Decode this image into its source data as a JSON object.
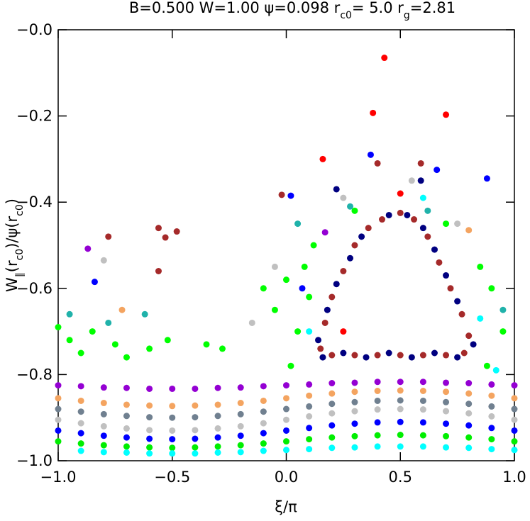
{
  "chart_data": {
    "type": "scatter",
    "title": [
      "B=0.500  W=1.00  ψ=0.098  r",
      "c0",
      "= 5.0  r",
      "g",
      "=2.81"
    ],
    "x_label": [
      "ξ/π"
    ],
    "y_label": [
      "W",
      "∥",
      "(r",
      "c0",
      ")/ψ(r",
      "c0",
      ")"
    ],
    "xlim": [
      -1,
      1
    ],
    "ylim": [
      -1,
      0
    ],
    "xticks": [
      {
        "value": -1,
        "label": "−1.0"
      },
      {
        "value": -0.5,
        "label": "−0.5"
      },
      {
        "value": 0,
        "label": "0.0"
      },
      {
        "value": 0.5,
        "label": "0.5"
      },
      {
        "value": 1,
        "label": "1.0"
      }
    ],
    "yticks": [
      {
        "value": -1,
        "label": "−1.0"
      },
      {
        "value": -0.8,
        "label": "−0.8"
      },
      {
        "value": -0.6,
        "label": "−0.6"
      },
      {
        "value": -0.4,
        "label": "−0.4"
      },
      {
        "value": -0.2,
        "label": "−0.2"
      },
      {
        "value": 0,
        "label": "−0.0"
      }
    ],
    "series": [
      {
        "color": "#9400d3",
        "x": [
          -1,
          -0.9,
          -0.8,
          -0.7,
          -0.6,
          -0.5,
          -0.4,
          -0.3,
          -0.2,
          -0.1,
          0,
          0.1,
          0.2,
          0.3,
          0.4,
          0.5,
          0.6,
          0.7,
          0.8,
          0.9,
          1
        ],
        "values": [
          -0.825,
          -0.827,
          -0.83,
          -0.831,
          -0.833,
          -0.833,
          -0.833,
          -0.831,
          -0.83,
          -0.827,
          -0.825,
          -0.823,
          -0.82,
          -0.819,
          -0.817,
          -0.817,
          -0.817,
          -0.819,
          -0.82,
          -0.823,
          -0.825
        ]
      },
      {
        "color": "#f4a460",
        "x": [
          -1,
          -0.9,
          -0.8,
          -0.7,
          -0.6,
          -0.5,
          -0.4,
          -0.3,
          -0.2,
          -0.1,
          0,
          0.1,
          0.2,
          0.3,
          0.4,
          0.5,
          0.6,
          0.7,
          0.8,
          0.9,
          1
        ],
        "values": [
          -0.855,
          -0.861,
          -0.866,
          -0.87,
          -0.872,
          -0.873,
          -0.872,
          -0.87,
          -0.866,
          -0.861,
          -0.855,
          -0.849,
          -0.844,
          -0.84,
          -0.838,
          -0.837,
          -0.838,
          -0.84,
          -0.844,
          -0.849,
          -0.855
        ]
      },
      {
        "color": "#708090",
        "x": [
          -1,
          -0.9,
          -0.8,
          -0.7,
          -0.6,
          -0.5,
          -0.4,
          -0.3,
          -0.2,
          -0.1,
          0,
          0.1,
          0.2,
          0.3,
          0.4,
          0.5,
          0.6,
          0.7,
          0.8,
          0.9,
          1
        ],
        "values": [
          -0.88,
          -0.886,
          -0.892,
          -0.896,
          -0.899,
          -0.9,
          -0.899,
          -0.896,
          -0.892,
          -0.886,
          -0.88,
          -0.874,
          -0.868,
          -0.864,
          -0.861,
          -0.86,
          -0.861,
          -0.864,
          -0.868,
          -0.874,
          -0.88
        ]
      },
      {
        "color": "#c0c0c0",
        "x": [
          -1,
          -0.9,
          -0.8,
          -0.7,
          -0.6,
          -0.5,
          -0.4,
          -0.3,
          -0.2,
          -0.1,
          0,
          0.1,
          0.2,
          0.3,
          0.4,
          0.5,
          0.6,
          0.7,
          0.8,
          0.9,
          1
        ],
        "values": [
          -0.905,
          -0.913,
          -0.92,
          -0.925,
          -0.929,
          -0.93,
          -0.929,
          -0.925,
          -0.92,
          -0.913,
          -0.905,
          -0.897,
          -0.89,
          -0.885,
          -0.881,
          -0.88,
          -0.881,
          -0.885,
          -0.89,
          -0.897,
          -0.905
        ]
      },
      {
        "color": "#0000ff",
        "x": [
          -1,
          -0.9,
          -0.8,
          -0.7,
          -0.6,
          -0.5,
          -0.4,
          -0.3,
          -0.2,
          -0.1,
          0,
          0.1,
          0.2,
          0.3,
          0.4,
          0.5,
          0.6,
          0.7,
          0.8,
          0.9,
          1
        ],
        "values": [
          -0.93,
          -0.936,
          -0.942,
          -0.946,
          -0.949,
          -0.95,
          -0.949,
          -0.946,
          -0.942,
          -0.936,
          -0.93,
          -0.924,
          -0.918,
          -0.914,
          -0.911,
          -0.91,
          -0.911,
          -0.914,
          -0.918,
          -0.924,
          -0.93
        ]
      },
      {
        "color": "#00ee00",
        "x": [
          -1,
          -0.9,
          -0.8,
          -0.7,
          -0.6,
          -0.5,
          -0.4,
          -0.3,
          -0.2,
          -0.1,
          0,
          0.1,
          0.2,
          0.3,
          0.4,
          0.5,
          0.6,
          0.7,
          0.8,
          0.9,
          1
        ],
        "values": [
          -0.955,
          -0.96,
          -0.964,
          -0.967,
          -0.969,
          -0.97,
          -0.969,
          -0.967,
          -0.964,
          -0.96,
          -0.955,
          -0.95,
          -0.946,
          -0.943,
          -0.941,
          -0.94,
          -0.941,
          -0.943,
          -0.946,
          -0.95,
          -0.955
        ]
      },
      {
        "color": "#00ffff",
        "x": [
          -0.9,
          -0.8,
          -0.7,
          -0.6,
          -0.5,
          -0.4,
          -0.3,
          -0.2,
          -0.1,
          0,
          0.1,
          0.2,
          0.3,
          0.4,
          0.5,
          0.6,
          0.7,
          0.8,
          0.9,
          1
        ],
        "values": [
          -0.977,
          -0.98,
          -0.981,
          -0.983,
          -0.983,
          -0.983,
          -0.981,
          -0.98,
          -0.977,
          -0.975,
          -0.973,
          -0.97,
          -0.969,
          -0.967,
          -0.967,
          -0.967,
          -0.969,
          -0.97,
          -0.973,
          -0.975
        ]
      },
      {
        "color": "#00ff00",
        "x": [
          -1,
          -0.95,
          -0.9,
          -0.85,
          -0.75,
          -0.7,
          -0.6,
          -0.52,
          -0.35,
          -0.28,
          -0.1,
          -0.05,
          0,
          0.05,
          0.08,
          0.1,
          0.12,
          0.85,
          0.9,
          0.95,
          0.7,
          0.3,
          0.02,
          0.88
        ],
        "values": [
          -0.69,
          -0.72,
          -0.75,
          -0.7,
          -0.73,
          -0.76,
          -0.74,
          -0.72,
          -0.73,
          -0.74,
          -0.6,
          -0.65,
          -0.58,
          -0.7,
          -0.55,
          -0.62,
          -0.5,
          -0.55,
          -0.6,
          -0.7,
          -0.45,
          -0.42,
          -0.78,
          -0.78
        ]
      },
      {
        "color": "#20b2aa",
        "x": [
          -0.95,
          -0.78,
          -0.62,
          0.05,
          0.28,
          0.62,
          0.95
        ],
        "values": [
          -0.66,
          -0.68,
          -0.66,
          -0.45,
          -0.41,
          -0.42,
          -0.65
        ]
      },
      {
        "color": "#c0c0c0",
        "x": [
          -0.8,
          -0.05,
          0.55,
          0.25,
          0.75,
          -0.15
        ],
        "values": [
          -0.535,
          -0.55,
          -0.35,
          -0.39,
          -0.45,
          -0.68
        ]
      },
      {
        "color": "#00ffff",
        "x": [
          0.1,
          0.85,
          0.92,
          0.6
        ],
        "values": [
          -0.7,
          -0.67,
          -0.79,
          -0.39
        ]
      },
      {
        "color": "#000080",
        "x": [
          0.14,
          0.18,
          0.22,
          0.28,
          0.33,
          0.45,
          0.53,
          0.6,
          0.65,
          0.7,
          0.75,
          0.82,
          0.75,
          0.65,
          0.55,
          0.45,
          0.35,
          0.25,
          0.16,
          0.22,
          0.59
        ],
        "values": [
          -0.72,
          -0.65,
          -0.59,
          -0.53,
          -0.48,
          -0.43,
          -0.43,
          -0.46,
          -0.51,
          -0.57,
          -0.63,
          -0.73,
          -0.76,
          -0.75,
          -0.76,
          -0.75,
          -0.76,
          -0.75,
          -0.76,
          -0.37,
          -0.35
        ]
      },
      {
        "color": "#a52a2a",
        "x": [
          0.15,
          0.17,
          0.2,
          0.25,
          0.3,
          0.36,
          0.42,
          0.5,
          0.56,
          0.62,
          0.67,
          0.72,
          0.77,
          0.8,
          0.78,
          0.7,
          0.6,
          0.5,
          0.4,
          0.3,
          0.2,
          -0.78,
          -0.56,
          -0.48,
          -0.53,
          -0.56,
          0.4,
          0.59,
          -0.02
        ],
        "values": [
          -0.74,
          -0.68,
          -0.62,
          -0.56,
          -0.5,
          -0.46,
          -0.44,
          -0.425,
          -0.44,
          -0.48,
          -0.54,
          -0.6,
          -0.66,
          -0.71,
          -0.75,
          -0.755,
          -0.755,
          -0.755,
          -0.755,
          -0.755,
          -0.755,
          -0.48,
          -0.46,
          -0.468,
          -0.482,
          -0.56,
          -0.31,
          -0.31,
          -0.383
        ]
      },
      {
        "color": "#9400d3",
        "x": [
          -0.87,
          0.17
        ],
        "values": [
          -0.508,
          -0.47
        ]
      },
      {
        "color": "#0000ff",
        "x": [
          0.37,
          0.02,
          0.66,
          0.88,
          -0.84,
          0.07
        ],
        "values": [
          -0.29,
          -0.385,
          -0.325,
          -0.345,
          -0.585,
          -0.6
        ]
      },
      {
        "color": "#f4a460",
        "x": [
          -0.72,
          0.8
        ],
        "values": [
          -0.65,
          -0.465
        ]
      },
      {
        "color": "#ff0000",
        "x": [
          0.43,
          0.38,
          0.7,
          0.16,
          0.5,
          0.25
        ],
        "values": [
          -0.065,
          -0.193,
          -0.197,
          -0.3,
          -0.38,
          -0.7
        ]
      }
    ]
  }
}
